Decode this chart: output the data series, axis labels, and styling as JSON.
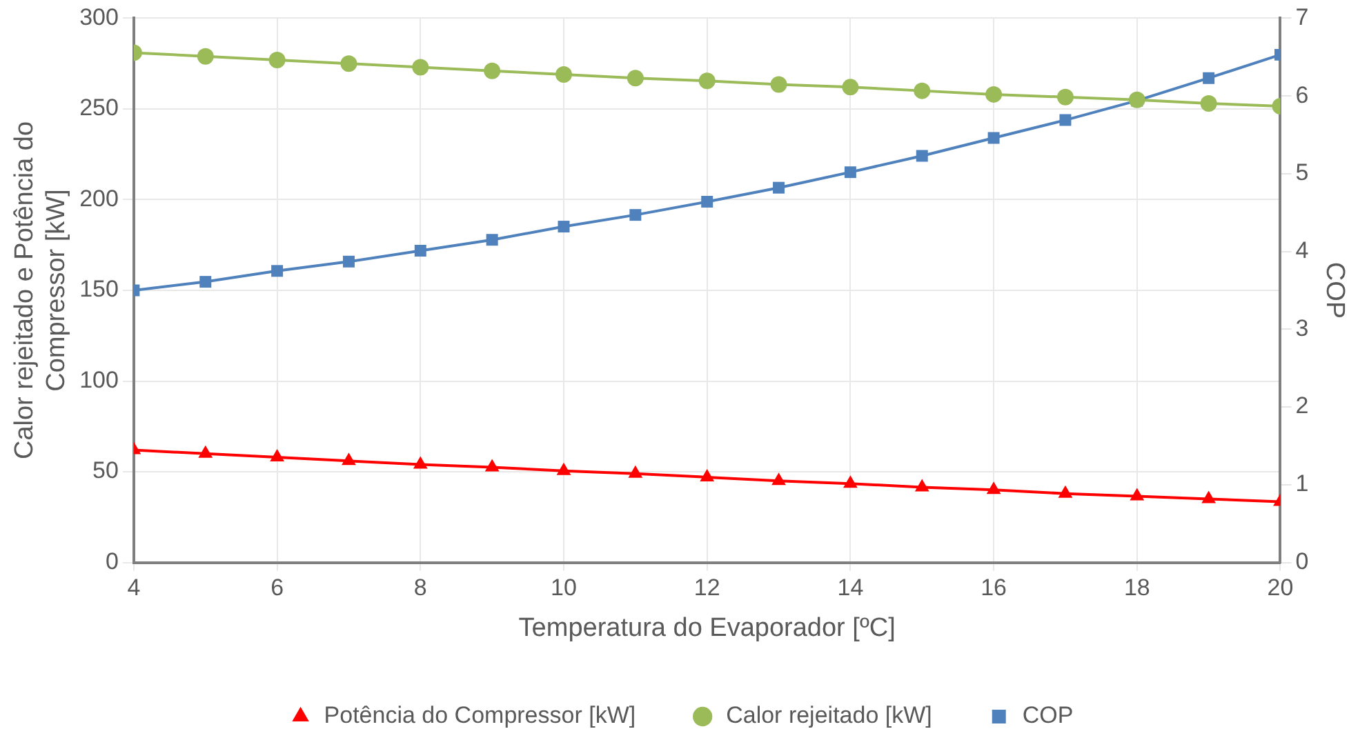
{
  "chart_data": {
    "type": "line",
    "xlabel": "Temperatura do Evaporador [ºC]",
    "ylabel": "Calor rejeitado e Potência do Compressor [kW]",
    "y2label": "COP",
    "x": [
      4,
      5,
      6,
      7,
      8,
      9,
      10,
      11,
      12,
      13,
      14,
      15,
      16,
      17,
      18,
      19,
      20
    ],
    "xlim": [
      4,
      20
    ],
    "xticks": [
      4,
      6,
      8,
      10,
      12,
      14,
      16,
      18,
      20
    ],
    "ylim": [
      0,
      300
    ],
    "yticks": [
      0,
      50,
      100,
      150,
      200,
      250,
      300
    ],
    "y2lim": [
      0,
      7
    ],
    "y2ticks": [
      0,
      1,
      2,
      3,
      4,
      5,
      6,
      7
    ],
    "grid": true,
    "legend": "bottom",
    "series": [
      {
        "name": "Potência do Compressor [kW]",
        "color": "#ff0000",
        "marker": "triangle",
        "values": [
          62,
          60,
          58,
          56,
          54,
          52.5,
          50.5,
          49,
          47,
          45,
          43.5,
          41.5,
          40,
          38,
          36.5,
          35,
          33.5
        ]
      },
      {
        "name": "Calor rejeitado [kW]",
        "color": "#9bbb59",
        "marker": "circle",
        "values": [
          281,
          279,
          277,
          275,
          273,
          271,
          269,
          267,
          265.5,
          263.5,
          262,
          260,
          258,
          256.5,
          255,
          253,
          251.5
        ]
      },
      {
        "name": "COP",
        "color": "#4f81bd",
        "marker": "square",
        "axis": "y2",
        "values": [
          3.5,
          3.61,
          3.75,
          3.87,
          4.01,
          4.15,
          4.32,
          4.47,
          4.64,
          4.82,
          5.02,
          5.23,
          5.46,
          5.69,
          5.94,
          6.23,
          6.53
        ]
      }
    ]
  }
}
